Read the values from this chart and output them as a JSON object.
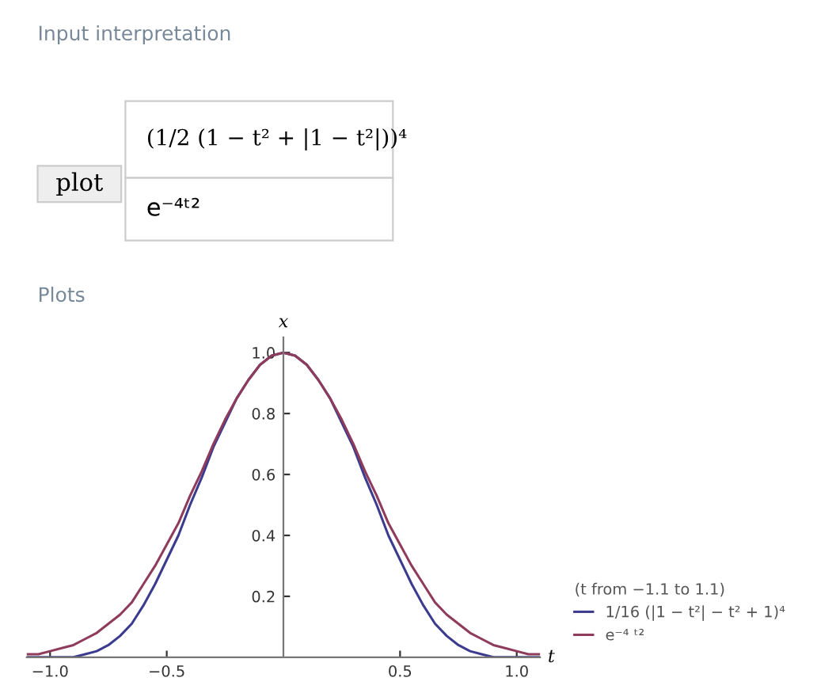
{
  "chart_data": {
    "type": "line",
    "annotations": [
      "Input interpretation",
      "plot",
      "(1/2 (1 − t² + |1 − t²|))⁴",
      "e⁻⁴ᵗ²",
      "Plots"
    ],
    "xlabel": "t",
    "ylabel": "x",
    "legend_title": "(t from −1.1 to 1.1)",
    "legend": "right",
    "x": [
      -1.1,
      -1.05,
      -1.0,
      -0.95,
      -0.9,
      -0.85,
      -0.8,
      -0.75,
      -0.7,
      -0.65,
      -0.6,
      -0.55,
      -0.5,
      -0.45,
      -0.4,
      -0.35,
      -0.3,
      -0.25,
      -0.2,
      -0.15,
      -0.1,
      -0.05,
      0,
      0.05,
      0.1,
      0.15,
      0.2,
      0.25,
      0.3,
      0.35,
      0.4,
      0.45,
      0.5,
      0.55,
      0.6,
      0.65,
      0.7,
      0.75,
      0.8,
      0.85,
      0.9,
      0.95,
      1.0,
      1.05,
      1.1
    ],
    "series": [
      {
        "name": "1/16 (|1 − t²| − t² + 1)⁴",
        "color": "#3b3b8f",
        "values": [
          0,
          0,
          0,
          0.0,
          0.0,
          0.01,
          0.02,
          0.04,
          0.07,
          0.11,
          0.17,
          0.24,
          0.32,
          0.4,
          0.5,
          0.59,
          0.69,
          0.77,
          0.85,
          0.91,
          0.96,
          0.99,
          1,
          0.99,
          0.96,
          0.91,
          0.85,
          0.77,
          0.69,
          0.59,
          0.5,
          0.4,
          0.32,
          0.24,
          0.17,
          0.11,
          0.07,
          0.04,
          0.02,
          0.01,
          0.0,
          0.0,
          0,
          0,
          0
        ]
      },
      {
        "name": "e⁻⁴ ᵗ²",
        "color": "#8f3b5b",
        "values": [
          0.01,
          0.01,
          0.02,
          0.03,
          0.04,
          0.06,
          0.08,
          0.11,
          0.14,
          0.18,
          0.24,
          0.3,
          0.37,
          0.44,
          0.53,
          0.61,
          0.7,
          0.78,
          0.85,
          0.91,
          0.96,
          0.99,
          1,
          0.99,
          0.96,
          0.91,
          0.85,
          0.78,
          0.7,
          0.61,
          0.53,
          0.44,
          0.37,
          0.3,
          0.24,
          0.18,
          0.14,
          0.11,
          0.08,
          0.06,
          0.04,
          0.03,
          0.02,
          0.01,
          0.01
        ]
      }
    ],
    "xlim": [
      -1.1,
      1.1
    ],
    "ylim": [
      0,
      1.05
    ],
    "xticks": [
      {
        "value": -1.0,
        "label": "−1.0"
      },
      {
        "value": -0.5,
        "label": "−0.5"
      },
      0.5,
      {
        "value": 1,
        "label": "1.0"
      }
    ],
    "yticks": [
      0.2,
      0.4,
      0.6,
      0.8,
      {
        "value": 1,
        "label": "1.0"
      }
    ],
    "grid": false,
    "marker": "none",
    "line_style": "solid"
  }
}
